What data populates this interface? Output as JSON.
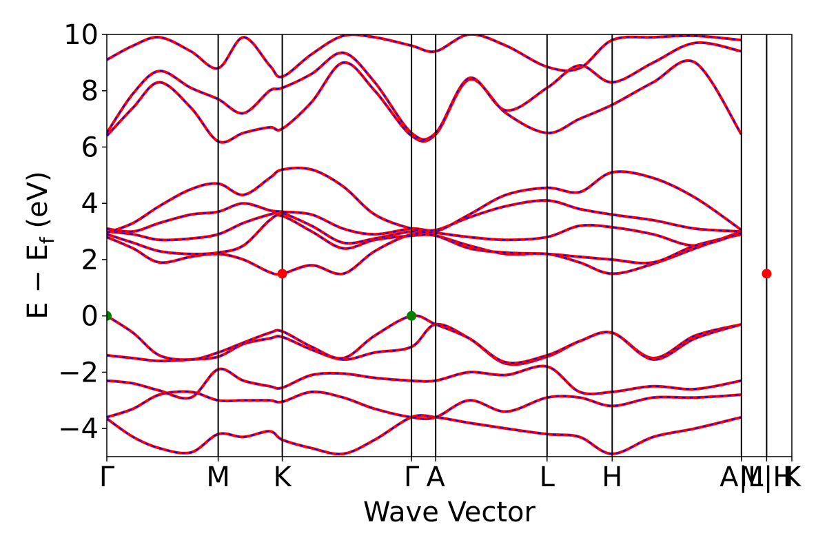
{
  "chart_data": {
    "type": "line",
    "title": "",
    "xlabel": "Wave Vector",
    "ylabel": "E − E",
    "ylabel_sub": "f",
    "ylabel_unit": " (eV)",
    "ylim": [
      -5,
      10
    ],
    "xlim": [
      0,
      6.52
    ],
    "grid": false,
    "legend": "none",
    "y_ticks": [
      {
        "value": -4,
        "label": "−4"
      },
      {
        "value": -2,
        "label": "−2"
      },
      {
        "value": 0,
        "label": "0"
      },
      {
        "value": 2,
        "label": "2"
      },
      {
        "value": 4,
        "label": "4"
      },
      {
        "value": 6,
        "label": "6"
      },
      {
        "value": 8,
        "label": "8"
      },
      {
        "value": 10,
        "label": "10"
      }
    ],
    "high_symmetry_points": [
      {
        "label": "Γ",
        "k": 0.0
      },
      {
        "label": "M",
        "k": 1.06
      },
      {
        "label": "K",
        "k": 1.67
      },
      {
        "label": "Γ",
        "k": 2.9
      },
      {
        "label": "A",
        "k": 3.13
      },
      {
        "label": "L",
        "k": 4.19
      },
      {
        "label": "H",
        "k": 4.81
      },
      {
        "label": "A|L",
        "k": 6.04
      },
      {
        "label": "M|H",
        "k": 6.28
      },
      {
        "label": "K",
        "k": 6.52
      }
    ],
    "colors": {
      "band": "#ff0000",
      "band_overlay": "#0000ff",
      "vbm": "#008000",
      "cbm": "#ff0000"
    },
    "bands": [
      {
        "name": "",
        "x": [
          0,
          0.25,
          0.5,
          0.8,
          1.06,
          1.3,
          1.55,
          1.67,
          1.95,
          2.25,
          2.55,
          2.9,
          3.13,
          3.45,
          3.8,
          4.19,
          4.5,
          4.81,
          5.2,
          5.6,
          6.04
        ],
        "y": [
          -3.65,
          -4.3,
          -4.7,
          -4.85,
          -4.2,
          -4.3,
          -4.1,
          -4.4,
          -4.7,
          -4.9,
          -4.4,
          -3.6,
          -3.6,
          -3.8,
          -4.0,
          -4.2,
          -4.3,
          -4.9,
          -4.3,
          -4.0,
          -3.6
        ]
      },
      {
        "name": "",
        "x": [
          0,
          0.25,
          0.5,
          0.8,
          1.06,
          1.3,
          1.55,
          1.67,
          1.95,
          2.25,
          2.55,
          2.9,
          3.13,
          3.45,
          3.8,
          4.19,
          4.5,
          4.81,
          5.2,
          5.6,
          6.04
        ],
        "y": [
          -3.6,
          -3.3,
          -2.8,
          -2.7,
          -3.0,
          -3.0,
          -3.0,
          -3.05,
          -2.7,
          -2.9,
          -3.3,
          -3.6,
          -3.6,
          -3.0,
          -3.4,
          -2.9,
          -2.9,
          -3.2,
          -2.9,
          -2.9,
          -2.8
        ]
      },
      {
        "name": "",
        "x": [
          0,
          0.25,
          0.5,
          0.8,
          1.06,
          1.3,
          1.55,
          1.67,
          1.95,
          2.25,
          2.55,
          2.9,
          3.13,
          3.45,
          3.8,
          4.19,
          4.5,
          4.81,
          5.2,
          5.6,
          6.04
        ],
        "y": [
          -2.3,
          -2.4,
          -2.65,
          -2.9,
          -1.9,
          -2.3,
          -2.5,
          -2.55,
          -2.1,
          -2.05,
          -2.2,
          -2.3,
          -2.3,
          -2.0,
          -2.1,
          -1.8,
          -2.7,
          -2.7,
          -2.5,
          -2.6,
          -2.3
        ]
      },
      {
        "name": "",
        "x": [
          0,
          0.25,
          0.5,
          0.8,
          1.06,
          1.3,
          1.55,
          1.67,
          1.95,
          2.25,
          2.55,
          2.9,
          3.13,
          3.45,
          3.8,
          4.19,
          4.5,
          4.81,
          5.2,
          5.6,
          6.04
        ],
        "y": [
          -1.4,
          -1.5,
          -1.6,
          -1.55,
          -1.45,
          -1.0,
          -0.8,
          -0.75,
          -1.2,
          -1.55,
          -1.3,
          -1.1,
          -0.3,
          -0.8,
          -1.7,
          -1.45,
          -0.9,
          -0.6,
          -1.5,
          -0.7,
          -0.3
        ]
      },
      {
        "name": "",
        "x": [
          0,
          0.25,
          0.5,
          0.8,
          1.06,
          1.3,
          1.55,
          1.67,
          1.95,
          2.25,
          2.55,
          2.9,
          3.13,
          3.45,
          3.8,
          4.19,
          4.5,
          4.81,
          5.2,
          5.6,
          6.04
        ],
        "y": [
          0.0,
          -0.6,
          -1.4,
          -1.55,
          -1.3,
          -0.95,
          -0.6,
          -0.55,
          -1.1,
          -1.5,
          -0.7,
          0.0,
          -0.3,
          -0.8,
          -1.65,
          -1.4,
          -0.9,
          -0.6,
          -1.55,
          -0.8,
          -0.3
        ]
      },
      {
        "name": "",
        "x": [
          0,
          0.25,
          0.5,
          0.8,
          1.06,
          1.3,
          1.55,
          1.67,
          1.95,
          2.25,
          2.55,
          2.9,
          3.13,
          3.45,
          3.8,
          4.19,
          4.5,
          4.81,
          5.2,
          5.6,
          6.04
        ],
        "y": [
          2.8,
          2.4,
          1.9,
          2.1,
          2.2,
          2.0,
          1.55,
          1.5,
          1.8,
          1.5,
          2.3,
          2.9,
          2.85,
          2.5,
          2.2,
          2.2,
          1.9,
          1.5,
          1.85,
          2.4,
          3.0
        ]
      },
      {
        "name": "",
        "x": [
          0,
          0.25,
          0.5,
          0.8,
          1.06,
          1.3,
          1.55,
          1.67,
          1.95,
          2.25,
          2.55,
          2.9,
          3.13,
          3.45,
          3.8,
          4.19,
          4.5,
          4.81,
          5.2,
          5.6,
          6.04
        ],
        "y": [
          2.9,
          2.6,
          2.3,
          2.2,
          2.25,
          2.5,
          3.4,
          3.55,
          3.0,
          2.4,
          2.7,
          2.85,
          2.85,
          2.4,
          2.25,
          2.2,
          2.1,
          2.0,
          1.9,
          2.5,
          2.9
        ]
      },
      {
        "name": "",
        "x": [
          0,
          0.25,
          0.5,
          0.8,
          1.06,
          1.3,
          1.55,
          1.67,
          1.95,
          2.25,
          2.55,
          2.9,
          3.13,
          3.45,
          3.8,
          4.19,
          4.5,
          4.81,
          5.2,
          5.6,
          6.04
        ],
        "y": [
          3.0,
          2.9,
          2.7,
          2.75,
          2.9,
          3.3,
          3.6,
          3.65,
          3.2,
          2.6,
          2.75,
          3.0,
          2.95,
          2.8,
          2.7,
          2.8,
          3.2,
          3.15,
          2.9,
          2.5,
          2.95
        ]
      },
      {
        "name": "",
        "x": [
          0,
          0.25,
          0.5,
          0.8,
          1.06,
          1.3,
          1.55,
          1.67,
          1.95,
          2.25,
          2.55,
          2.9,
          3.13,
          3.45,
          3.8,
          4.19,
          4.5,
          4.81,
          5.2,
          5.6,
          6.04
        ],
        "y": [
          3.1,
          3.0,
          3.3,
          3.6,
          3.7,
          4.0,
          3.75,
          3.7,
          3.6,
          3.1,
          2.9,
          3.1,
          3.05,
          3.5,
          3.9,
          4.1,
          3.8,
          3.6,
          3.4,
          3.1,
          3.0
        ]
      },
      {
        "name": "",
        "x": [
          0,
          0.25,
          0.5,
          0.8,
          1.06,
          1.3,
          1.55,
          1.67,
          1.95,
          2.25,
          2.55,
          2.9,
          3.13,
          3.45,
          3.8,
          4.19,
          4.5,
          4.81,
          5.2,
          5.6,
          6.04
        ],
        "y": [
          2.95,
          3.3,
          3.9,
          4.5,
          4.7,
          4.3,
          4.9,
          5.2,
          5.2,
          4.6,
          3.6,
          3.1,
          3.0,
          3.6,
          4.3,
          4.55,
          4.4,
          5.1,
          4.9,
          4.2,
          3.05
        ]
      },
      {
        "name": "",
        "x": [
          0,
          0.25,
          0.5,
          0.8,
          1.06,
          1.3,
          1.55,
          1.67,
          1.95,
          2.25,
          2.55,
          2.9,
          3.13,
          3.45,
          3.8,
          4.19,
          4.5,
          4.81,
          5.2,
          5.6,
          6.04
        ],
        "y": [
          6.4,
          7.4,
          8.3,
          7.4,
          6.2,
          6.5,
          6.7,
          6.65,
          7.6,
          9.0,
          8.0,
          6.4,
          6.45,
          8.4,
          7.2,
          6.5,
          7.0,
          7.5,
          8.3,
          9.0,
          6.45
        ]
      },
      {
        "name": "",
        "x": [
          0,
          0.25,
          0.5,
          0.8,
          1.06,
          1.3,
          1.55,
          1.67,
          1.95,
          2.25,
          2.55,
          2.9,
          3.13,
          3.45,
          3.8,
          4.19,
          4.5,
          4.81,
          5.2,
          5.6,
          6.04
        ],
        "y": [
          6.5,
          7.9,
          8.7,
          8.1,
          7.7,
          7.2,
          8.0,
          8.1,
          8.6,
          9.35,
          8.3,
          6.5,
          6.5,
          8.45,
          7.3,
          8.1,
          8.9,
          8.3,
          9.0,
          9.7,
          9.4
        ]
      },
      {
        "name": "",
        "x": [
          0,
          0.25,
          0.5,
          0.8,
          1.06,
          1.3,
          1.55,
          1.67,
          1.95,
          2.25,
          2.55,
          2.9,
          3.13,
          3.45,
          3.8,
          4.19,
          4.5,
          4.81,
          5.2,
          5.6,
          6.04
        ],
        "y": [
          9.1,
          9.6,
          9.9,
          9.4,
          8.8,
          9.9,
          8.9,
          8.5,
          9.3,
          9.95,
          9.9,
          9.6,
          9.4,
          10.0,
          9.6,
          8.85,
          8.8,
          9.8,
          9.9,
          9.95,
          9.8
        ]
      }
    ],
    "band_extremes": [
      {
        "type": "vbm",
        "k": 0.0,
        "energy": 0.0
      },
      {
        "type": "vbm",
        "k": 2.9,
        "energy": 0.0
      },
      {
        "type": "cbm",
        "k": 1.67,
        "energy": 1.5
      },
      {
        "type": "cbm",
        "k": 6.28,
        "energy": 1.5
      }
    ]
  }
}
